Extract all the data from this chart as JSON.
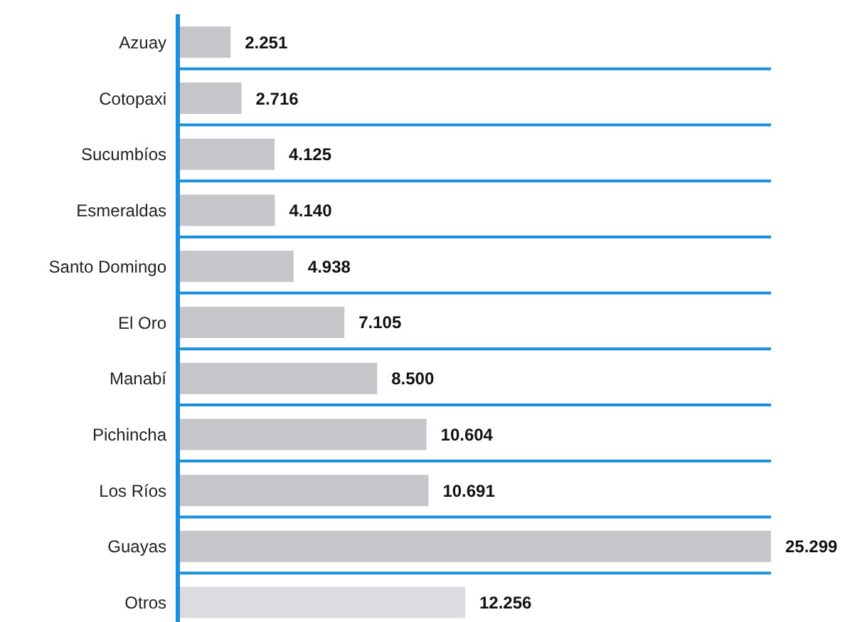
{
  "chart_data": {
    "type": "bar",
    "orientation": "horizontal",
    "categories": [
      "Azuay",
      "Cotopaxi",
      "Sucumbíos",
      "Esmeraldas",
      "Santo Domingo",
      "El Oro",
      "Manabí",
      "Pichincha",
      "Los Ríos",
      "Guayas",
      "Otros"
    ],
    "values": [
      2251,
      2716,
      4125,
      4140,
      4938,
      7105,
      8500,
      10604,
      10691,
      25299,
      12256
    ],
    "value_labels": [
      "2.251",
      "2.716",
      "4.125",
      "4.140",
      "4.938",
      "7.105",
      "8.500",
      "10.604",
      "10.691",
      "25.299",
      "12.256"
    ],
    "colors": [
      "#c6c6ca",
      "#c6c6ca",
      "#c6c6ca",
      "#c6c6ca",
      "#c6c6ca",
      "#c6c6ca",
      "#c6c6ca",
      "#c6c6ca",
      "#c6c6ca",
      "#c6c6ca",
      "#dcdce0"
    ],
    "grid": "y",
    "tick_labels": "y"
  }
}
